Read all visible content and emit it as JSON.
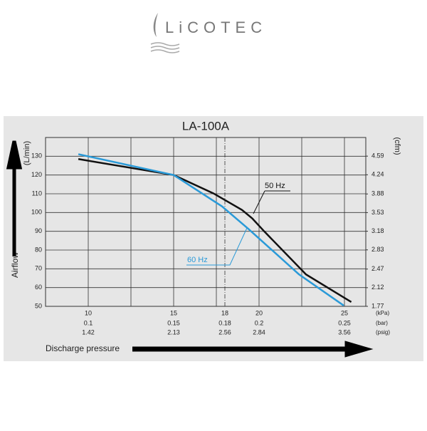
{
  "logo": "LiCOTEC",
  "chart_data": {
    "type": "line",
    "title": "LA-100A",
    "ylabel": "(L/min)",
    "y2label": "(cfm)",
    "y_title": "Airflow",
    "x_title": "Discharge pressure",
    "x_units": [
      "(kPa)",
      "(bar)",
      "(psig)"
    ],
    "xlim": [
      7.5,
      26.25
    ],
    "xticks": [
      10,
      15,
      18,
      20,
      25
    ],
    "xminor": [
      12.5,
      17.5,
      22.5
    ],
    "bar_labels": [
      "0.1",
      "0.15",
      "0.18",
      "0.2",
      "0.25"
    ],
    "psig_labels": [
      "1.42",
      "2.13",
      "2.56",
      "2.84",
      "3.56"
    ],
    "ylim": [
      50,
      140
    ],
    "yticks": [
      50,
      60,
      70,
      80,
      90,
      100,
      110,
      120,
      130
    ],
    "y2lim": [
      1.77,
      4.94
    ],
    "y2ticks": [
      1.77,
      2.12,
      2.47,
      2.83,
      3.18,
      3.53,
      3.88,
      4.24,
      4.59
    ],
    "series": [
      {
        "name": "50 Hz",
        "color": "#111111",
        "x": [
          9.42,
          15,
          17.33,
          19,
          19.6,
          20.3,
          22.75,
          25.4
        ],
        "values": [
          128.5,
          120,
          110.2,
          101.4,
          96.9,
          90,
          67,
          52.3
        ]
      },
      {
        "name": "60 Hz",
        "color": "#2a9ad8",
        "x": [
          9.42,
          15,
          17.83,
          19.4,
          22.33,
          24.96
        ],
        "values": [
          131.1,
          120,
          103.3,
          91.1,
          67.1,
          50.4
        ]
      }
    ]
  }
}
